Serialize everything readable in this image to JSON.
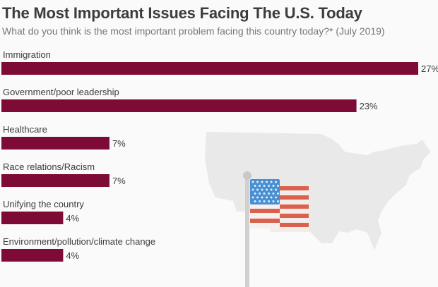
{
  "chart_data": {
    "type": "bar",
    "orientation": "horizontal",
    "title": "The Most Important Issues Facing The U.S. Today",
    "subtitle": "What do you think is the most important problem facing this country today?* (July 2019)",
    "categories": [
      "Immigration",
      "Government/poor leadership",
      "Healthcare",
      "Race relations/Racism",
      "Unifying the country",
      "Environment/pollution/climate change"
    ],
    "values": [
      27,
      23,
      7,
      7,
      4,
      4
    ],
    "value_labels": [
      "27%",
      "23%",
      "7%",
      "7%",
      "4%",
      "4%"
    ],
    "unit": "%",
    "xlim": [
      0,
      27
    ],
    "grid": false,
    "colors": {
      "bar": "#7d0b36",
      "text": "#3c3c3c",
      "map": "#e9e9e9"
    }
  }
}
